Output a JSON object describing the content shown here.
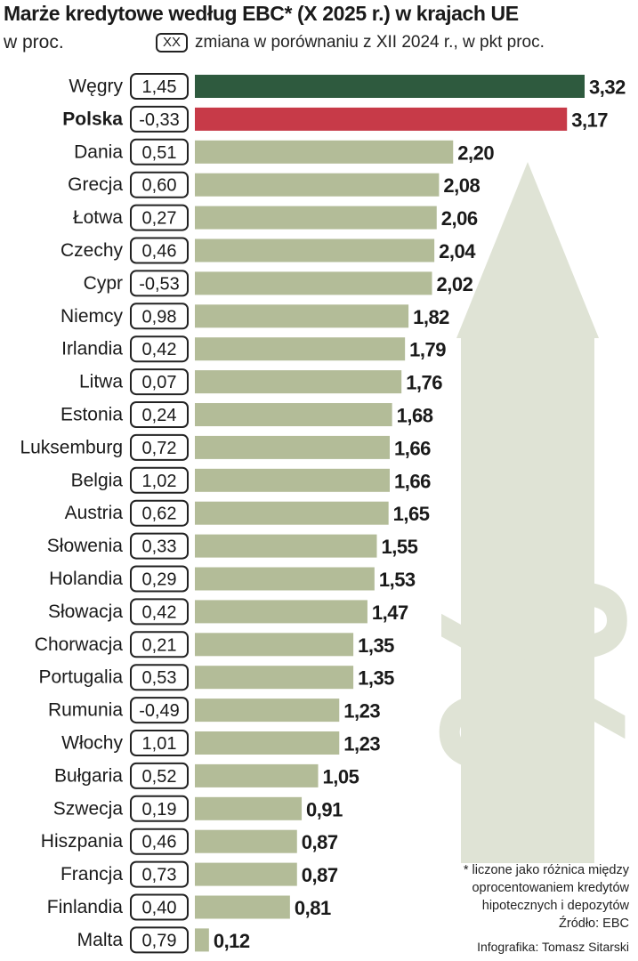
{
  "title": "Marże kredytowe według EBC* (X 2025 r.) w krajach UE",
  "subtitle": "w proc.",
  "legend": {
    "marker": "XX",
    "text": "zmiana w porównaniu z XII 2024 r., w pkt proc."
  },
  "footnote": {
    "line1": "* liczone jako różnica między",
    "line2": "oprocentowaniem kredytów",
    "line3": "hipotecznych i depozytów",
    "source": "Źródło: EBC"
  },
  "credit": "Infografika: Tomasz Sitarski",
  "colors": {
    "default_bar": "#b3bc98",
    "top_bar": "#2e5a3e",
    "poland_bar": "#c73a48",
    "arrow": "#dfe3d5"
  },
  "chart_data": {
    "type": "bar",
    "orientation": "horizontal",
    "title": "Marże kredytowe według EBC* (X 2025 r.) w krajach UE",
    "subtitle": "w proc.",
    "categories": [
      "Węgry",
      "Polska",
      "Dania",
      "Grecja",
      "Łotwa",
      "Czechy",
      "Cypr",
      "Niemcy",
      "Irlandia",
      "Litwa",
      "Estonia",
      "Luksemburg",
      "Belgia",
      "Austria",
      "Słowenia",
      "Holandia",
      "Słowacja",
      "Chorwacja",
      "Portugalia",
      "Rumunia",
      "Włochy",
      "Bułgaria",
      "Szwecja",
      "Hiszpania",
      "Francja",
      "Finlandia",
      "Malta"
    ],
    "values": [
      3.32,
      3.17,
      2.2,
      2.08,
      2.06,
      2.04,
      2.02,
      1.82,
      1.79,
      1.76,
      1.68,
      1.66,
      1.66,
      1.65,
      1.55,
      1.53,
      1.47,
      1.35,
      1.35,
      1.23,
      1.23,
      1.05,
      0.91,
      0.87,
      0.87,
      0.81,
      0.12
    ],
    "value_labels": [
      "3,32",
      "3,17",
      "2,20",
      "2,08",
      "2,06",
      "2,04",
      "2,02",
      "1,82",
      "1,79",
      "1,76",
      "1,68",
      "1,66",
      "1,66",
      "1,65",
      "1,55",
      "1,53",
      "1,47",
      "1,35",
      "1,35",
      "1,23",
      "1,23",
      "1,05",
      "0,91",
      "0,87",
      "0,87",
      "0,81",
      "0,12"
    ],
    "change_values": [
      1.45,
      -0.33,
      0.51,
      0.6,
      0.27,
      0.46,
      -0.53,
      0.98,
      0.42,
      0.07,
      0.24,
      0.72,
      1.02,
      0.62,
      0.33,
      0.29,
      0.42,
      0.21,
      0.53,
      -0.49,
      1.01,
      0.52,
      0.19,
      0.46,
      0.73,
      0.4,
      0.79
    ],
    "change_labels": [
      "1,45",
      "-0,33",
      "0,51",
      "0,60",
      "0,27",
      "0,46",
      "-0,53",
      "0,98",
      "0,42",
      "0,07",
      "0,24",
      "0,72",
      "1,02",
      "0,62",
      "0,33",
      "0,29",
      "0,42",
      "0,21",
      "0,53",
      "-0,49",
      "1,01",
      "0,52",
      "0,19",
      "0,46",
      "0,73",
      "0,40",
      "0,79"
    ],
    "highlighted": [
      "Polska"
    ],
    "xlim": [
      0,
      3.32
    ],
    "grid": false,
    "legend_position": "top"
  }
}
